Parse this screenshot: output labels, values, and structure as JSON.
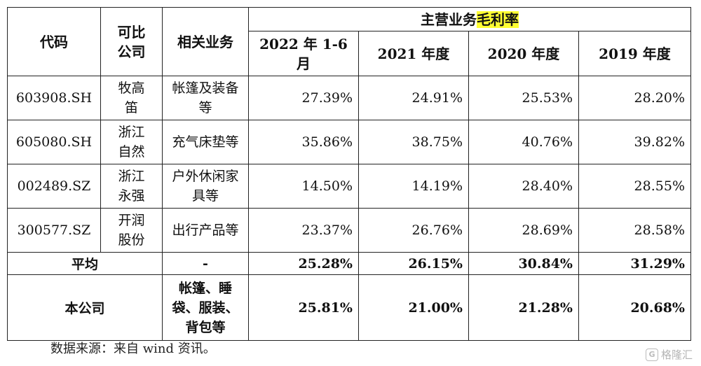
{
  "header": {
    "code": "代码",
    "company": "可比公司",
    "business": "相关业务",
    "margin_group_prefix": "主营业务",
    "margin_group_highlight": "毛利率",
    "periods": [
      "2022 年 1-6 月",
      "2021 年度",
      "2020 年度",
      "2019 年度"
    ]
  },
  "rows": [
    {
      "code": "603908.SH",
      "company": "牧高笛",
      "business": "帐篷及装备等",
      "values": [
        "27.39%",
        "24.91%",
        "25.53%",
        "28.20%"
      ]
    },
    {
      "code": "605080.SH",
      "company": "浙江自然",
      "business": "充气床垫等",
      "values": [
        "35.86%",
        "38.75%",
        "40.76%",
        "39.82%"
      ]
    },
    {
      "code": "002489.SZ",
      "company": "浙江永强",
      "business": "户外休闲家具等",
      "values": [
        "14.50%",
        "14.19%",
        "28.40%",
        "28.55%"
      ]
    },
    {
      "code": "300577.SZ",
      "company": "开润股份",
      "business": "出行产品等",
      "values": [
        "23.37%",
        "26.76%",
        "28.69%",
        "28.58%"
      ]
    }
  ],
  "average": {
    "label": "平均",
    "business": "-",
    "values": [
      "25.28%",
      "26.15%",
      "30.84%",
      "31.29%"
    ]
  },
  "self": {
    "label": "本公司",
    "business": "帐篷、睡袋、服装、背包等",
    "values": [
      "25.81%",
      "21.00%",
      "21.28%",
      "20.68%"
    ]
  },
  "source": "数据来源：来自 wind 资讯。",
  "watermark": {
    "logo": "G",
    "text": "格隆汇"
  }
}
